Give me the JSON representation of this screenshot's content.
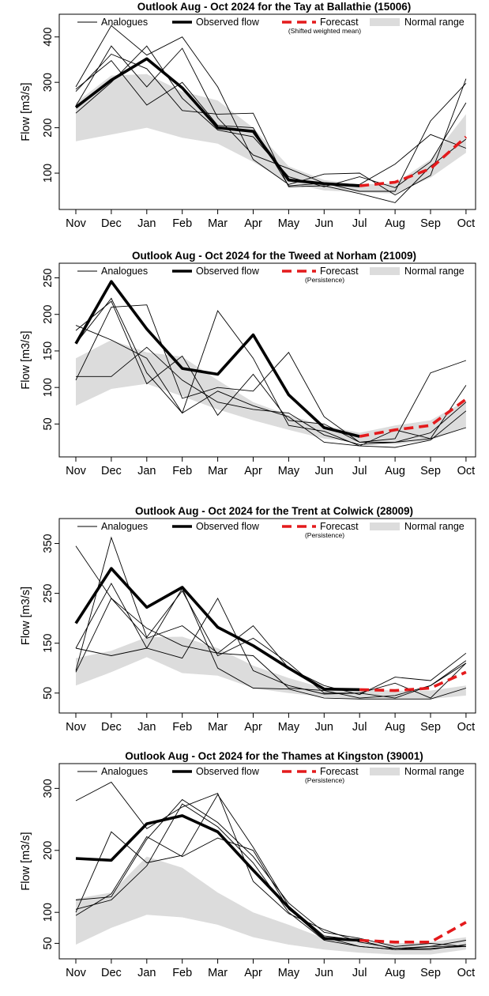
{
  "legend_labels": {
    "analogues": "Analogues",
    "observed": "Observed flow",
    "forecast": "Forecast",
    "normal": "Normal range"
  },
  "colors": {
    "observed": "#000000",
    "analogues": "#000000",
    "forecast": "#e41a1c",
    "normal_range": "#dcdcdc"
  },
  "chart_data": [
    {
      "type": "line",
      "title": "Outlook Aug - Oct 2024 for the Tay at Ballathie (15006)",
      "forecast_note": "(Shifted weighted mean)",
      "ylabel": "Flow [m3/s]",
      "xlabel": "",
      "categories": [
        "Nov",
        "Dec",
        "Jan",
        "Feb",
        "Mar",
        "Apr",
        "May",
        "Jun",
        "Jul",
        "Aug",
        "Sep",
        "Oct"
      ],
      "ylim": [
        20,
        450
      ],
      "yticks": [
        100,
        200,
        300,
        400
      ],
      "observed": [
        245,
        305,
        352,
        288,
        200,
        192,
        85,
        77,
        72
      ],
      "forecast": [
        72,
        80,
        110,
        180
      ],
      "normal_range": {
        "upper": [
          255,
          315,
          318,
          280,
          260,
          200,
          115,
          85,
          75,
          78,
          130,
          230
        ],
        "lower": [
          170,
          185,
          200,
          178,
          165,
          125,
          78,
          62,
          58,
          55,
          90,
          145
        ]
      },
      "series": [
        {
          "values": [
            290,
            425,
            360,
            400,
            290,
            130,
            75,
            98,
            100,
            52,
            95,
            308
          ]
        },
        {
          "values": [
            280,
            362,
            330,
            238,
            230,
            232,
            70,
            72,
            55,
            35,
            115,
            175
          ]
        },
        {
          "values": [
            248,
            380,
            290,
            375,
            222,
            140,
            110,
            78,
            60,
            60,
            215,
            298
          ]
        },
        {
          "values": [
            285,
            348,
            250,
            300,
            205,
            200,
            72,
            78,
            75,
            120,
            185,
            155
          ]
        },
        {
          "values": [
            232,
            300,
            380,
            265,
            195,
            180,
            92,
            70,
            92,
            68,
            125,
            255
          ]
        }
      ]
    },
    {
      "type": "line",
      "title": "Outlook Aug - Oct 2024 for the Tweed at Norham (21009)",
      "forecast_note": "(Persistence)",
      "ylabel": "Flow [m3/s]",
      "xlabel": "",
      "categories": [
        "Nov",
        "Dec",
        "Jan",
        "Feb",
        "Mar",
        "Apr",
        "May",
        "Jun",
        "Jul",
        "Aug",
        "Sep",
        "Oct"
      ],
      "ylim": [
        5,
        270
      ],
      "yticks": [
        50,
        100,
        150,
        200,
        250
      ],
      "observed": [
        160,
        245,
        180,
        126,
        118,
        172,
        90,
        45,
        33
      ],
      "forecast": [
        33,
        42,
        48,
        84
      ],
      "normal_range": {
        "upper": [
          140,
          165,
          148,
          142,
          110,
          80,
          62,
          48,
          38,
          48,
          55,
          82
        ],
        "lower": [
          75,
          98,
          105,
          88,
          70,
          55,
          42,
          30,
          25,
          22,
          28,
          45
        ]
      },
      "series": [
        {
          "values": [
            185,
            165,
            140,
            65,
            205,
            140,
            48,
            40,
            20,
            18,
            28,
            68
          ]
        },
        {
          "values": [
            110,
            210,
            213,
            85,
            100,
            95,
            148,
            60,
            25,
            30,
            120,
            137
          ]
        },
        {
          "values": [
            178,
            218,
            105,
            143,
            62,
            118,
            55,
            50,
            25,
            25,
            30,
            103
          ]
        },
        {
          "values": [
            160,
            222,
            120,
            65,
            95,
            75,
            60,
            25,
            20,
            42,
            30,
            45
          ]
        },
        {
          "values": [
            115,
            115,
            155,
            110,
            80,
            70,
            65,
            35,
            22,
            25,
            38,
            80
          ]
        }
      ]
    },
    {
      "type": "line",
      "title": "Outlook Aug - Oct 2024 for the Trent at Colwick (28009)",
      "forecast_note": "(Persistence)",
      "ylabel": "Flow [m3/s]",
      "xlabel": "",
      "categories": [
        "Nov",
        "Dec",
        "Jan",
        "Feb",
        "Mar",
        "Apr",
        "May",
        "Jun",
        "Jul",
        "Aug",
        "Sep",
        "Oct"
      ],
      "ylim": [
        10,
        400
      ],
      "yticks": [
        50,
        150,
        250,
        350
      ],
      "observed": [
        190,
        300,
        222,
        262,
        182,
        145,
        100,
        58,
        57
      ],
      "forecast": [
        57,
        55,
        60,
        92
      ],
      "normal_range": {
        "upper": [
          120,
          135,
          162,
          163,
          140,
          105,
          80,
          60,
          58,
          55,
          55,
          65
        ],
        "lower": [
          65,
          92,
          122,
          90,
          85,
          60,
          50,
          42,
          38,
          38,
          38,
          45
        ]
      },
      "series": [
        {
          "values": [
            345,
            240,
            160,
            185,
            130,
            185,
            100,
            65,
            47,
            82,
            75,
            130
          ]
        },
        {
          "values": [
            95,
            362,
            162,
            255,
            125,
            160,
            110,
            50,
            50,
            40,
            65,
            110
          ]
        },
        {
          "values": [
            140,
            125,
            140,
            120,
            240,
            95,
            65,
            48,
            50,
            70,
            40,
            110
          ]
        },
        {
          "values": [
            92,
            240,
            180,
            145,
            130,
            125,
            60,
            55,
            40,
            45,
            65,
            115
          ]
        },
        {
          "values": [
            140,
            270,
            140,
            260,
            100,
            60,
            58,
            40,
            38,
            38,
            38,
            60
          ]
        }
      ]
    },
    {
      "type": "line",
      "title": "Outlook Aug - Oct 2024 for the Thames at Kingston (39001)",
      "forecast_note": "(Persistence)",
      "ylabel": "Flow [m3/s]",
      "xlabel": "",
      "categories": [
        "Nov",
        "Dec",
        "Jan",
        "Feb",
        "Mar",
        "Apr",
        "May",
        "Jun",
        "Jul",
        "Aug",
        "Sep",
        "Oct"
      ],
      "ylim": [
        25,
        340
      ],
      "yticks": [
        50,
        100,
        200,
        300
      ],
      "observed": [
        187,
        184,
        243,
        256,
        230,
        168,
        108,
        58,
        55
      ],
      "forecast": [
        55,
        52,
        52,
        84
      ],
      "normal_range": {
        "upper": [
          122,
          132,
          190,
          172,
          132,
          100,
          80,
          58,
          52,
          50,
          52,
          60
        ],
        "lower": [
          48,
          75,
          96,
          92,
          80,
          60,
          48,
          40,
          35,
          32,
          32,
          40
        ]
      },
      "series": [
        {
          "values": [
            280,
            310,
            235,
            270,
            292,
            150,
            98,
            72,
            52,
            42,
            45,
            45
          ]
        },
        {
          "values": [
            100,
            230,
            180,
            192,
            290,
            205,
            110,
            62,
            55,
            40,
            40,
            48
          ]
        },
        {
          "values": [
            120,
            125,
            218,
            282,
            245,
            190,
            115,
            68,
            58,
            45,
            50,
            45
          ]
        },
        {
          "values": [
            95,
            130,
            222,
            190,
            220,
            200,
            105,
            60,
            45,
            40,
            45,
            55
          ]
        },
        {
          "values": [
            105,
            120,
            175,
            275,
            238,
            180,
            100,
            55,
            45,
            40,
            42,
            45
          ]
        }
      ]
    }
  ]
}
